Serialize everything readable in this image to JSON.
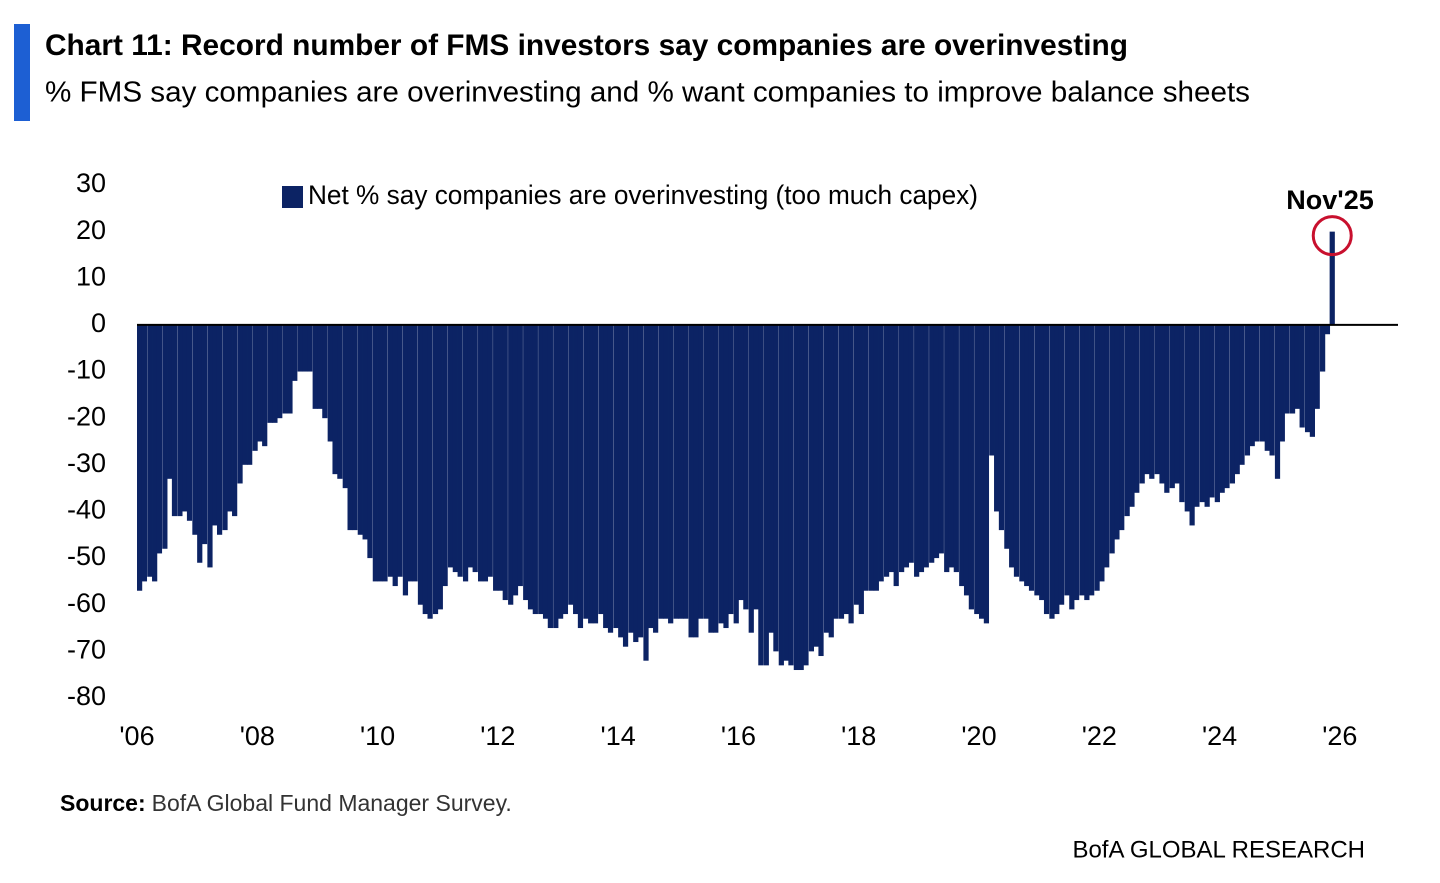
{
  "chart_data": {
    "type": "bar",
    "title": "Chart 11: Record number of FMS investors say companies are overinvesting",
    "subtitle": "% FMS say companies are overinvesting and % want companies to improve balance sheets",
    "x": [
      2006.0,
      2006.08,
      2006.17,
      2006.25,
      2006.33,
      2006.42,
      2006.5,
      2006.58,
      2006.67,
      2006.75,
      2006.83,
      2006.92,
      2007.0,
      2007.08,
      2007.17,
      2007.25,
      2007.33,
      2007.42,
      2007.5,
      2007.58,
      2007.67,
      2007.75,
      2007.83,
      2007.92,
      2008.0,
      2008.08,
      2008.17,
      2008.25,
      2008.33,
      2008.42,
      2008.5,
      2008.58,
      2008.67,
      2008.75,
      2008.83,
      2008.92,
      2009.0,
      2009.08,
      2009.17,
      2009.25,
      2009.33,
      2009.42,
      2009.5,
      2009.58,
      2009.67,
      2009.75,
      2009.83,
      2009.92,
      2010.0,
      2010.08,
      2010.17,
      2010.25,
      2010.33,
      2010.42,
      2010.5,
      2010.58,
      2010.67,
      2010.75,
      2010.83,
      2010.92,
      2011.0,
      2011.08,
      2011.17,
      2011.25,
      2011.33,
      2011.42,
      2011.5,
      2011.58,
      2011.67,
      2011.75,
      2011.83,
      2011.92,
      2012.0,
      2012.08,
      2012.17,
      2012.25,
      2012.33,
      2012.42,
      2012.5,
      2012.58,
      2012.67,
      2012.75,
      2012.83,
      2012.92,
      2013.0,
      2013.08,
      2013.17,
      2013.25,
      2013.33,
      2013.42,
      2013.5,
      2013.58,
      2013.67,
      2013.75,
      2013.83,
      2013.92,
      2014.0,
      2014.08,
      2014.17,
      2014.25,
      2014.33,
      2014.42,
      2014.5,
      2014.58,
      2014.67,
      2014.75,
      2014.83,
      2014.92,
      2015.0,
      2015.08,
      2015.17,
      2015.25,
      2015.33,
      2015.42,
      2015.5,
      2015.58,
      2015.67,
      2015.75,
      2015.83,
      2015.92,
      2016.0,
      2016.08,
      2016.17,
      2016.25,
      2016.33,
      2016.42,
      2016.5,
      2016.58,
      2016.67,
      2016.75,
      2016.83,
      2016.92,
      2017.0,
      2017.08,
      2017.17,
      2017.25,
      2017.33,
      2017.42,
      2017.5,
      2017.58,
      2017.67,
      2017.75,
      2017.83,
      2017.92,
      2018.0,
      2018.08,
      2018.17,
      2018.25,
      2018.33,
      2018.42,
      2018.5,
      2018.58,
      2018.67,
      2018.75,
      2018.83,
      2018.92,
      2019.0,
      2019.08,
      2019.17,
      2019.25,
      2019.33,
      2019.42,
      2019.5,
      2019.58,
      2019.67,
      2019.75,
      2019.83,
      2019.92,
      2020.0,
      2020.08,
      2020.17,
      2020.25,
      2020.33,
      2020.42,
      2020.5,
      2020.58,
      2020.67,
      2020.75,
      2020.83,
      2020.92,
      2021.0,
      2021.08,
      2021.17,
      2021.25,
      2021.33,
      2021.42,
      2021.5,
      2021.58,
      2021.67,
      2021.75,
      2021.83,
      2021.92,
      2022.0,
      2022.08,
      2022.17,
      2022.25,
      2022.33,
      2022.42,
      2022.5,
      2022.58,
      2022.67,
      2022.75,
      2022.83,
      2022.92,
      2023.0,
      2023.08,
      2023.17,
      2023.25,
      2023.33,
      2023.42,
      2023.5,
      2023.58,
      2023.67,
      2023.75,
      2023.83,
      2023.92,
      2024.0,
      2024.08,
      2024.17,
      2024.25,
      2024.33,
      2024.42,
      2024.5,
      2024.58,
      2024.67,
      2024.75,
      2024.83,
      2024.92,
      2025.0,
      2025.08,
      2025.17,
      2025.25,
      2025.33,
      2025.42,
      2025.5,
      2025.58,
      2025.67,
      2025.75,
      2025.83
    ],
    "series": [
      {
        "name": "Net % say companies are overinvesting (too much capex)",
        "color": "#0c2364",
        "values": [
          -57,
          -55,
          -54,
          -55,
          -49,
          -48,
          -33,
          -41,
          -41,
          -40,
          -42,
          -45,
          -51,
          -47,
          -52,
          -43,
          -45,
          -44,
          -40,
          -41,
          -34,
          -30,
          -30,
          -27,
          -25,
          -26,
          -21,
          -21,
          -20,
          -19,
          -19,
          -12,
          -10,
          -10,
          -10,
          -18,
          -18,
          -20,
          -25,
          -32,
          -33,
          -35,
          -44,
          -44,
          -45,
          -46,
          -50,
          -55,
          -55,
          -55,
          -54,
          -56,
          -54,
          -58,
          -55,
          -55,
          -60,
          -62,
          -63,
          -62,
          -61,
          -56,
          -52,
          -53,
          -54,
          -55,
          -52,
          -53,
          -55,
          -55,
          -54,
          -57,
          -57,
          -59,
          -60,
          -58,
          -56,
          -59,
          -61,
          -62,
          -62,
          -63,
          -65,
          -65,
          -63,
          -62,
          -60,
          -62,
          -65,
          -63,
          -64,
          -64,
          -62,
          -65,
          -66,
          -65,
          -67,
          -69,
          -66,
          -68,
          -67,
          -72,
          -65,
          -66,
          -63,
          -63,
          -64,
          -63,
          -63,
          -63,
          -67,
          -67,
          -63,
          -63,
          -66,
          -66,
          -64,
          -65,
          -62,
          -64,
          -59,
          -61,
          -66,
          -61,
          -73,
          -73,
          -66,
          -70,
          -73,
          -72,
          -73,
          -74,
          -74,
          -73,
          -70,
          -69,
          -71,
          -66,
          -67,
          -63,
          -63,
          -62,
          -64,
          -60,
          -62,
          -57,
          -57,
          -57,
          -55,
          -54,
          -53,
          -56,
          -53,
          -52,
          -51,
          -54,
          -53,
          -52,
          -51,
          -50,
          -49,
          -53,
          -52,
          -53,
          -56,
          -58,
          -61,
          -62,
          -63,
          -64,
          -28,
          -40,
          -44,
          -48,
          -52,
          -54,
          -55,
          -56,
          -57,
          -58,
          -59,
          -62,
          -63,
          -62,
          -60,
          -58,
          -61,
          -59,
          -58,
          -59,
          -58,
          -57,
          -55,
          -52,
          -49,
          -46,
          -44,
          -41,
          -39,
          -36,
          -34,
          -32,
          -33,
          -32,
          -34,
          -36,
          -35,
          -34,
          -38,
          -40,
          -43,
          -39,
          -38,
          -39,
          -37,
          -38,
          -36,
          -35,
          -34,
          -32,
          -30,
          -28,
          -26,
          -25,
          -25,
          -27,
          -28,
          -33,
          -25,
          -19,
          -19,
          -18,
          -22,
          -23,
          -24,
          -18,
          -10,
          -2,
          20
        ]
      }
    ],
    "xlim": [
      2006,
      2027
    ],
    "xticks": [
      {
        "value": 2006,
        "label": "'06"
      },
      {
        "value": 2008,
        "label": "'08"
      },
      {
        "value": 2010,
        "label": "'10"
      },
      {
        "value": 2012,
        "label": "'12"
      },
      {
        "value": 2014,
        "label": "'14"
      },
      {
        "value": 2016,
        "label": "'16"
      },
      {
        "value": 2018,
        "label": "'18"
      },
      {
        "value": 2020,
        "label": "'20"
      },
      {
        "value": 2022,
        "label": "'22"
      },
      {
        "value": 2024,
        "label": "'24"
      },
      {
        "value": 2026,
        "label": "'26"
      }
    ],
    "ylim": [
      -80,
      30
    ],
    "yticks": [
      -80,
      -70,
      -60,
      -50,
      -40,
      -30,
      -20,
      -10,
      0,
      10,
      20,
      30
    ],
    "annotation": "Nov'25",
    "annotation_color": "#c8102e"
  },
  "source_label": "Source:",
  "source": "BofA Global Fund Manager Survey.",
  "branding": "BofA GLOBAL RESEARCH"
}
